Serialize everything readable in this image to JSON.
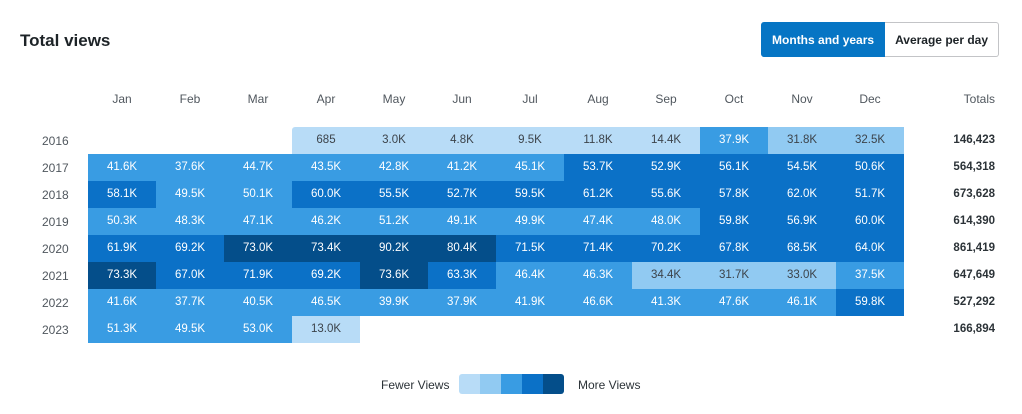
{
  "title": "Total views",
  "toggle": {
    "months_label": "Months and years",
    "average_label": "Average per day"
  },
  "months": [
    "Jan",
    "Feb",
    "Mar",
    "Apr",
    "May",
    "Jun",
    "Jul",
    "Aug",
    "Sep",
    "Oct",
    "Nov",
    "Dec"
  ],
  "totals_header": "Totals",
  "colors": [
    "#b8dcf7",
    "#91caf2",
    "#399ce3",
    "#0b71c7",
    "#044e8a"
  ],
  "rows": [
    {
      "year": "2016",
      "values": [
        "",
        "",
        "",
        "685",
        "3.0K",
        "4.8K",
        "9.5K",
        "11.8K",
        "14.4K",
        "37.9K",
        "31.8K",
        "32.5K"
      ],
      "levels": [
        -1,
        -1,
        -1,
        0,
        0,
        0,
        0,
        0,
        0,
        2,
        1,
        1
      ],
      "total": "146,423"
    },
    {
      "year": "2017",
      "values": [
        "41.6K",
        "37.6K",
        "44.7K",
        "43.5K",
        "42.8K",
        "41.2K",
        "45.1K",
        "53.7K",
        "52.9K",
        "56.1K",
        "54.5K",
        "50.6K"
      ],
      "levels": [
        2,
        2,
        2,
        2,
        2,
        2,
        2,
        3,
        3,
        3,
        3,
        3
      ],
      "total": "564,318"
    },
    {
      "year": "2018",
      "values": [
        "58.1K",
        "49.5K",
        "50.1K",
        "60.0K",
        "55.5K",
        "52.7K",
        "59.5K",
        "61.2K",
        "55.6K",
        "57.8K",
        "62.0K",
        "51.7K"
      ],
      "levels": [
        3,
        2,
        2,
        3,
        3,
        3,
        3,
        3,
        3,
        3,
        3,
        3
      ],
      "total": "673,628"
    },
    {
      "year": "2019",
      "values": [
        "50.3K",
        "48.3K",
        "47.1K",
        "46.2K",
        "51.2K",
        "49.1K",
        "49.9K",
        "47.4K",
        "48.0K",
        "59.8K",
        "56.9K",
        "60.0K"
      ],
      "levels": [
        2,
        2,
        2,
        2,
        2,
        2,
        2,
        2,
        2,
        3,
        3,
        3
      ],
      "total": "614,390"
    },
    {
      "year": "2020",
      "values": [
        "61.9K",
        "69.2K",
        "73.0K",
        "73.4K",
        "90.2K",
        "80.4K",
        "71.5K",
        "71.4K",
        "70.2K",
        "67.8K",
        "68.5K",
        "64.0K"
      ],
      "levels": [
        3,
        3,
        4,
        4,
        4,
        4,
        3,
        3,
        3,
        3,
        3,
        3
      ],
      "total": "861,419"
    },
    {
      "year": "2021",
      "values": [
        "73.3K",
        "67.0K",
        "71.9K",
        "69.2K",
        "73.6K",
        "63.3K",
        "46.4K",
        "46.3K",
        "34.4K",
        "31.7K",
        "33.0K",
        "37.5K"
      ],
      "levels": [
        4,
        3,
        3,
        3,
        4,
        3,
        2,
        2,
        1,
        1,
        1,
        2
      ],
      "total": "647,649"
    },
    {
      "year": "2022",
      "values": [
        "41.6K",
        "37.7K",
        "40.5K",
        "46.5K",
        "39.9K",
        "37.9K",
        "41.9K",
        "46.6K",
        "41.3K",
        "47.6K",
        "46.1K",
        "59.8K"
      ],
      "levels": [
        2,
        2,
        2,
        2,
        2,
        2,
        2,
        2,
        2,
        2,
        2,
        3
      ],
      "total": "527,292"
    },
    {
      "year": "2023",
      "values": [
        "51.3K",
        "49.5K",
        "53.0K",
        "13.0K",
        "",
        "",
        "",
        "",
        "",
        "",
        "",
        ""
      ],
      "levels": [
        2,
        2,
        2,
        0,
        -1,
        -1,
        -1,
        -1,
        -1,
        -1,
        -1,
        -1
      ],
      "total": "166,894"
    }
  ],
  "legend": {
    "fewer": "Fewer Views",
    "more": "More Views"
  }
}
